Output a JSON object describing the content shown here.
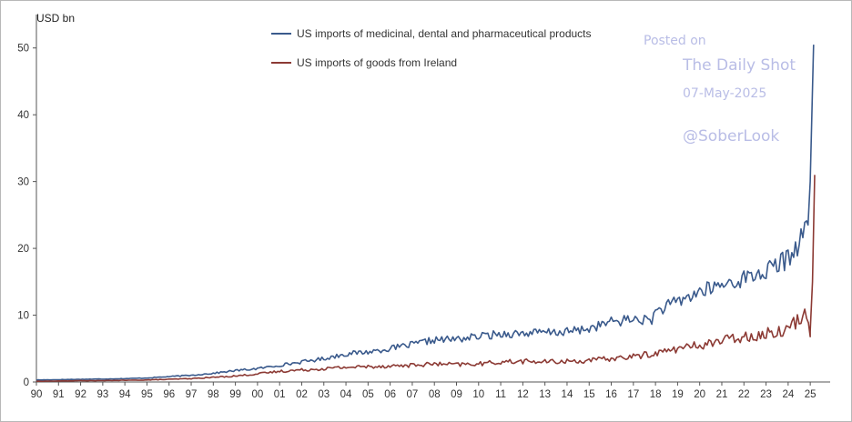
{
  "chart_data": {
    "type": "line",
    "unit_label": "USD bn",
    "ylim": [
      0,
      55
    ],
    "yticks": [
      0,
      10,
      20,
      30,
      40,
      50
    ],
    "xlim": [
      1990,
      2025.9
    ],
    "xtick_labels": [
      "90",
      "91",
      "92",
      "93",
      "94",
      "95",
      "96",
      "97",
      "98",
      "99",
      "00",
      "01",
      "02",
      "03",
      "04",
      "05",
      "06",
      "07",
      "08",
      "09",
      "10",
      "11",
      "12",
      "13",
      "14",
      "15",
      "16",
      "17",
      "18",
      "19",
      "20",
      "21",
      "22",
      "23",
      "24",
      "25"
    ],
    "grid": false,
    "legend_position": "top-center",
    "series": [
      {
        "name": "US imports of medicinal, dental and pharmaceutical products",
        "color": "#3a5a8c",
        "points": [
          [
            1990.0,
            0.3
          ],
          [
            1991.0,
            0.35
          ],
          [
            1992.0,
            0.4
          ],
          [
            1993.0,
            0.45
          ],
          [
            1994.0,
            0.5
          ],
          [
            1995.0,
            0.6
          ],
          [
            1996.0,
            0.8
          ],
          [
            1997.0,
            1.0
          ],
          [
            1998.0,
            1.3
          ],
          [
            1999.0,
            1.7
          ],
          [
            2000.0,
            2.0
          ],
          [
            2001.0,
            2.5
          ],
          [
            2002.0,
            3.0
          ],
          [
            2003.0,
            3.5
          ],
          [
            2004.0,
            4.2
          ],
          [
            2005.0,
            4.5
          ],
          [
            2006.0,
            5.0
          ],
          [
            2007.0,
            5.6
          ],
          [
            2008.0,
            6.3
          ],
          [
            2009.0,
            6.4
          ],
          [
            2010.0,
            6.8
          ],
          [
            2011.0,
            7.2
          ],
          [
            2012.0,
            7.3
          ],
          [
            2013.0,
            7.4
          ],
          [
            2014.0,
            7.5
          ],
          [
            2015.0,
            8.0
          ],
          [
            2016.0,
            9.0
          ],
          [
            2017.0,
            9.4
          ],
          [
            2017.8,
            9.2
          ],
          [
            2018.0,
            10.5
          ],
          [
            2019.0,
            12.0
          ],
          [
            2020.0,
            13.5
          ],
          [
            2021.0,
            14.5
          ],
          [
            2022.0,
            15.5
          ],
          [
            2023.0,
            16.5
          ],
          [
            2024.0,
            18.5
          ],
          [
            2024.6,
            21.5
          ],
          [
            2024.9,
            23.5
          ],
          [
            2025.0,
            30.0
          ],
          [
            2025.15,
            50.5
          ]
        ]
      },
      {
        "name": "US imports of goods from Ireland",
        "color": "#8c3a34",
        "points": [
          [
            1990.0,
            0.1
          ],
          [
            1991.0,
            0.15
          ],
          [
            1992.0,
            0.2
          ],
          [
            1993.0,
            0.2
          ],
          [
            1994.0,
            0.25
          ],
          [
            1995.0,
            0.3
          ],
          [
            1996.0,
            0.4
          ],
          [
            1997.0,
            0.5
          ],
          [
            1998.0,
            0.7
          ],
          [
            1999.0,
            0.9
          ],
          [
            2000.0,
            1.2
          ],
          [
            2001.0,
            1.6
          ],
          [
            2002.0,
            1.8
          ],
          [
            2003.0,
            2.0
          ],
          [
            2004.0,
            2.2
          ],
          [
            2005.0,
            2.3
          ],
          [
            2006.0,
            2.4
          ],
          [
            2007.0,
            2.5
          ],
          [
            2008.0,
            2.7
          ],
          [
            2009.0,
            2.6
          ],
          [
            2010.0,
            2.7
          ],
          [
            2011.0,
            3.0
          ],
          [
            2012.0,
            3.1
          ],
          [
            2013.0,
            3.0
          ],
          [
            2014.0,
            3.1
          ],
          [
            2015.0,
            3.2
          ],
          [
            2016.0,
            3.5
          ],
          [
            2017.0,
            3.8
          ],
          [
            2018.0,
            4.3
          ],
          [
            2019.0,
            5.0
          ],
          [
            2020.0,
            5.5
          ],
          [
            2021.0,
            6.2
          ],
          [
            2022.0,
            6.8
          ],
          [
            2023.0,
            7.2
          ],
          [
            2024.0,
            8.0
          ],
          [
            2024.5,
            9.5
          ],
          [
            2024.9,
            10.5
          ],
          [
            2025.0,
            7.6
          ],
          [
            2025.1,
            15.0
          ],
          [
            2025.2,
            31.0
          ]
        ]
      }
    ]
  },
  "watermark": {
    "posted_on": "Posted on",
    "site": "The Daily Shot",
    "date": "07-May-2025",
    "handle": "@SoberLook"
  }
}
